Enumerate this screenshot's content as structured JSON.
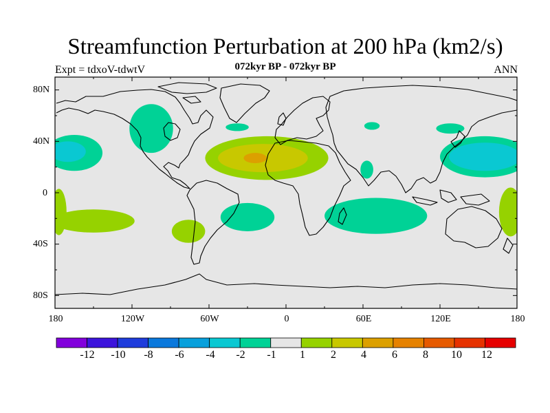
{
  "title": "Streamfunction Perturbation at 200 hPa (km2/s)",
  "subtitle": "072kyr BP - 072kyr BP",
  "left_label": "Expt = tdxoV-tdwtV",
  "right_label": "ANN",
  "lat_ticks": [
    "80N",
    "40N",
    "0",
    "40S",
    "80S"
  ],
  "lon_ticks": [
    "180",
    "120W",
    "60W",
    "0",
    "60E",
    "120E",
    "180"
  ],
  "colorbar": {
    "colors": [
      "#8200dc",
      "#3c14dc",
      "#1e3cdc",
      "#0a78dc",
      "#08a0dc",
      "#0ac8d2",
      "#00d296",
      "#e6e6e6",
      "#96d200",
      "#c8c800",
      "#dca000",
      "#e68200",
      "#e65a00",
      "#e63200",
      "#e60000"
    ],
    "labels": [
      "-12",
      "-10",
      "-8",
      "-6",
      "-4",
      "-2",
      "-1",
      "1",
      "2",
      "4",
      "6",
      "8",
      "10",
      "12"
    ]
  },
  "map": {
    "background": "#e6e6e6",
    "regions": [
      {
        "level": "-2",
        "color": "#00d296",
        "lon_center": -105,
        "lat_center": 50,
        "lon_radius": 17,
        "lat_radius": 19
      },
      {
        "level": "-2",
        "color": "#00d296",
        "lon_center": -165,
        "lat_center": 31,
        "lon_radius": 22,
        "lat_radius": 14
      },
      {
        "level": "-4",
        "color": "#0ac8d2",
        "lon_center": -170,
        "lat_center": 32,
        "lon_radius": 14,
        "lat_radius": 8
      },
      {
        "level": "-2",
        "color": "#00d296",
        "lon_center": -38,
        "lat_center": 51,
        "lon_radius": 9,
        "lat_radius": 3
      },
      {
        "level": "-2",
        "color": "#00d296",
        "lon_center": 67,
        "lat_center": 52,
        "lon_radius": 6,
        "lat_radius": 3
      },
      {
        "level": "-2",
        "color": "#00d296",
        "lon_center": 128,
        "lat_center": 50,
        "lon_radius": 11,
        "lat_radius": 4
      },
      {
        "level": "-2",
        "color": "#00d296",
        "lon_center": 155,
        "lat_center": 28,
        "lon_radius": 35,
        "lat_radius": 16
      },
      {
        "level": "-4",
        "color": "#0ac8d2",
        "lon_center": 155,
        "lat_center": 28,
        "lon_radius": 28,
        "lat_radius": 11
      },
      {
        "level": "-2",
        "color": "#00d296",
        "lon_center": -30,
        "lat_center": -19,
        "lon_radius": 21,
        "lat_radius": 11
      },
      {
        "level": "-2",
        "color": "#00d296",
        "lon_center": 70,
        "lat_center": -18,
        "lon_radius": 40,
        "lat_radius": 14
      },
      {
        "level": "-2",
        "color": "#00d296",
        "lon_center": 63,
        "lat_center": 18,
        "lon_radius": 5,
        "lat_radius": 7
      },
      {
        "level": "2",
        "color": "#96d200",
        "lon_center": -15,
        "lat_center": 27,
        "lon_radius": 48,
        "lat_radius": 17
      },
      {
        "level": "4",
        "color": "#c8c800",
        "lon_center": -18,
        "lat_center": 27,
        "lon_radius": 35,
        "lat_radius": 11
      },
      {
        "level": "6",
        "color": "#dca000",
        "lon_center": -24,
        "lat_center": 27,
        "lon_radius": 9,
        "lat_radius": 4
      },
      {
        "level": "2",
        "color": "#96d200",
        "lon_center": -150,
        "lat_center": -22,
        "lon_radius": 32,
        "lat_radius": 9
      },
      {
        "level": "2",
        "color": "#96d200",
        "lon_center": -76,
        "lat_center": -30,
        "lon_radius": 13,
        "lat_radius": 9
      },
      {
        "level": "2",
        "color": "#96d200",
        "lon_center": -177,
        "lat_center": -15,
        "lon_radius": 6,
        "lat_radius": 18
      },
      {
        "level": "2",
        "color": "#96d200",
        "lon_center": 175,
        "lat_center": -15,
        "lon_radius": 9,
        "lat_radius": 19
      }
    ]
  }
}
